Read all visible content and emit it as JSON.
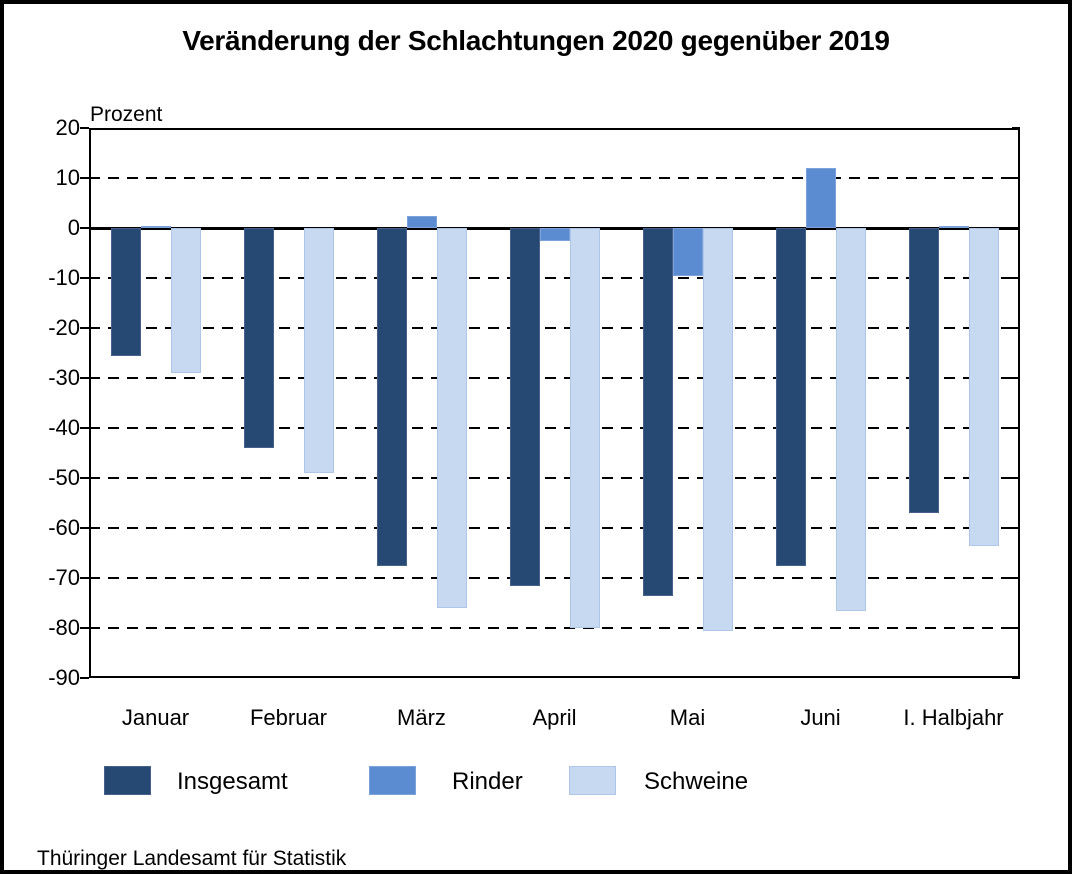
{
  "title": "Veränderung der Schlachtungen 2020 gegenüber 2019",
  "unit_label": "Prozent",
  "source_note": "Thüringer Landesamt für Statistik",
  "colors": {
    "insgesamt": "#254973",
    "insgesamt_border": "#46618c",
    "rinder": "#5b8bd0",
    "rinder_border": "#7ba2da",
    "schweine": "#c6d9f1",
    "schweine_border": "#aec7e8",
    "grid": "#000000",
    "frame": "#000000"
  },
  "chart_data": {
    "type": "bar",
    "title": "Veränderung der Schlachtungen 2020 gegenüber 2019",
    "xlabel": "",
    "ylabel": "Prozent",
    "categories": [
      "Januar",
      "Februar",
      "März",
      "April",
      "Mai",
      "Juni",
      "I. Halbjahr"
    ],
    "series": [
      {
        "name": "Insgesamt",
        "color_key": "insgesamt",
        "values": [
          -25.5,
          -44,
          -67.5,
          -71.5,
          -73.5,
          -67.5,
          -57
        ]
      },
      {
        "name": "Rinder",
        "color_key": "rinder",
        "values": [
          0.5,
          0,
          2.5,
          -2.5,
          -9.5,
          12,
          0.5
        ]
      },
      {
        "name": "Schweine",
        "color_key": "schweine",
        "values": [
          -29,
          -49,
          -76,
          -80,
          -80.5,
          -76.5,
          -63.5
        ]
      }
    ],
    "ylim": [
      -90,
      20
    ],
    "ytick_step": 10,
    "yticks": [
      20,
      10,
      0,
      -10,
      -20,
      -30,
      -40,
      -50,
      -60,
      -70,
      -80,
      -90
    ],
    "grid": "horizontal-dashed",
    "zero_line": "solid",
    "legend_position": "bottom"
  },
  "legend": {
    "items": [
      {
        "label": "Insgesamt",
        "color_key": "insgesamt"
      },
      {
        "label": "Rinder",
        "color_key": "rinder"
      },
      {
        "label": "Schweine",
        "color_key": "schweine"
      }
    ]
  }
}
